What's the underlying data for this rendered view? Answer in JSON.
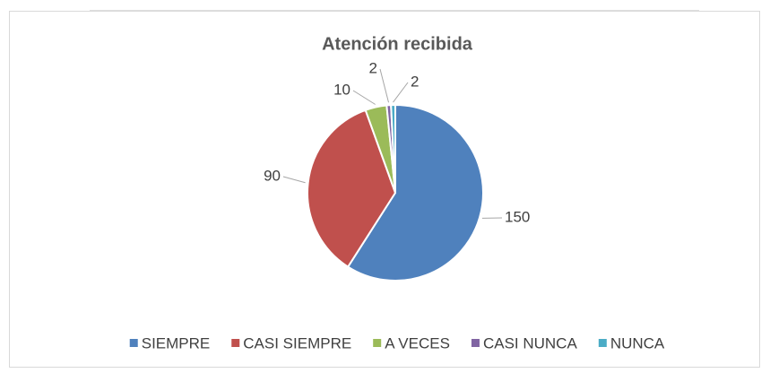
{
  "chart_data": {
    "type": "pie",
    "title": "Atención recibida",
    "categories": [
      "SIEMPRE",
      "CASI SIEMPRE",
      "A VECES",
      "CASI NUNCA",
      "NUNCA"
    ],
    "values": [
      150,
      90,
      10,
      2,
      2
    ],
    "colors": [
      "#4f81bd",
      "#c0504d",
      "#9bbb59",
      "#8064a2",
      "#4bacc6"
    ],
    "legend": "bottom"
  }
}
